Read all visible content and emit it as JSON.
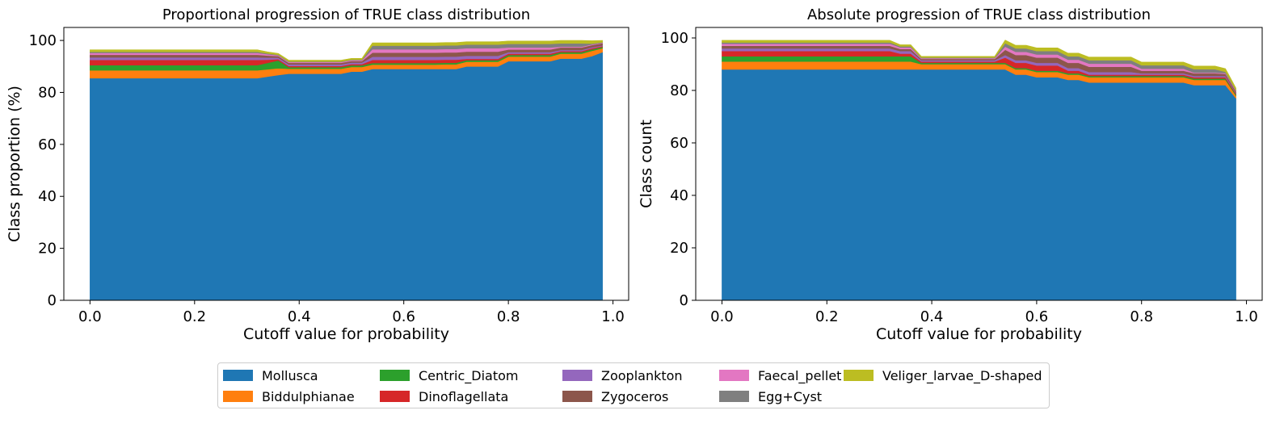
{
  "chart_data": [
    {
      "type": "area",
      "stacked": true,
      "title": "Proportional progression of TRUE class distribution",
      "xlabel": "Cutoff value for probability",
      "ylabel": "Class proportion (%)",
      "xlim": [
        -0.05,
        1.03
      ],
      "ylim": [
        0,
        105
      ],
      "xticks": [
        "0.0",
        "0.2",
        "0.4",
        "0.6",
        "0.8",
        "1.0"
      ],
      "yticks": [
        "0",
        "20",
        "40",
        "60",
        "80",
        "100"
      ],
      "x": [
        0.0,
        0.1,
        0.2,
        0.3,
        0.32,
        0.34,
        0.36,
        0.38,
        0.4,
        0.42,
        0.44,
        0.46,
        0.48,
        0.5,
        0.52,
        0.54,
        0.56,
        0.58,
        0.6,
        0.62,
        0.64,
        0.66,
        0.68,
        0.7,
        0.72,
        0.74,
        0.76,
        0.78,
        0.8,
        0.82,
        0.84,
        0.86,
        0.88,
        0.9,
        0.92,
        0.94,
        0.96,
        0.98
      ],
      "series": [
        {
          "name": "Mollusca",
          "values": [
            85.5,
            85.5,
            85.5,
            85.5,
            85.5,
            86.1,
            86.7,
            87.2,
            87.2,
            87.2,
            87.2,
            87.2,
            87.2,
            88.0,
            88.0,
            89.0,
            89.0,
            89.0,
            89.0,
            89.0,
            89.0,
            89.0,
            89.0,
            89.0,
            90.0,
            90.0,
            90.0,
            90.0,
            92.0,
            92.0,
            92.0,
            92.0,
            92.0,
            93.0,
            93.0,
            93.0,
            94.0,
            95.5
          ]
        },
        {
          "name": "Biddulphianae",
          "values": [
            3.0,
            3.0,
            3.0,
            3.0,
            3.0,
            2.8,
            2.6,
            1.9,
            1.9,
            1.9,
            1.9,
            1.9,
            1.9,
            1.8,
            1.8,
            1.7,
            1.7,
            1.7,
            1.7,
            1.7,
            1.7,
            1.7,
            1.8,
            1.8,
            1.8,
            1.8,
            1.8,
            1.8,
            1.8,
            1.8,
            1.8,
            1.8,
            1.8,
            1.9,
            1.9,
            1.9,
            2.0,
            1.5
          ]
        },
        {
          "name": "Centric_Diatom",
          "values": [
            2.0,
            2.0,
            2.0,
            2.0,
            2.0,
            2.5,
            3.0,
            0.6,
            0.6,
            0.6,
            0.6,
            0.6,
            0.6,
            0.6,
            0.6,
            0.6,
            0.6,
            0.6,
            0.6,
            0.6,
            0.6,
            0.6,
            0.6,
            0.6,
            0.6,
            0.6,
            0.6,
            0.6,
            0.6,
            0.6,
            0.6,
            0.6,
            0.6,
            0.6,
            0.6,
            0.6,
            0.6,
            0.5
          ]
        },
        {
          "name": "Dinoflagellata",
          "values": [
            2.0,
            2.0,
            2.0,
            2.0,
            2.0,
            1.2,
            0.5,
            0.5,
            0.5,
            0.5,
            0.5,
            0.5,
            0.5,
            0.5,
            0.5,
            1.2,
            1.2,
            1.2,
            1.2,
            1.2,
            1.2,
            1.2,
            1.2,
            1.2,
            0.5,
            0.5,
            0.5,
            0.5,
            0.5,
            0.5,
            0.5,
            0.5,
            0.5,
            0.4,
            0.4,
            0.4,
            0.4,
            0.3
          ]
        },
        {
          "name": "Zooplankton",
          "values": [
            1.0,
            1.0,
            1.0,
            1.0,
            1.0,
            0.8,
            0.6,
            0.6,
            0.6,
            0.6,
            0.6,
            0.6,
            0.6,
            0.6,
            0.6,
            1.2,
            1.2,
            1.2,
            1.2,
            1.2,
            1.2,
            1.2,
            1.2,
            1.2,
            1.2,
            1.2,
            1.2,
            1.2,
            0.6,
            0.6,
            0.6,
            0.6,
            0.6,
            0.4,
            0.4,
            0.4,
            0.4,
            0.3
          ]
        },
        {
          "name": "Zygoceros",
          "values": [
            1.0,
            1.0,
            1.0,
            1.0,
            1.0,
            0.8,
            0.6,
            0.6,
            0.6,
            0.6,
            0.6,
            0.6,
            0.6,
            0.6,
            0.6,
            1.6,
            1.6,
            1.6,
            1.6,
            1.6,
            1.6,
            1.6,
            1.6,
            1.6,
            1.6,
            1.6,
            1.6,
            1.6,
            1.0,
            1.0,
            1.0,
            1.0,
            1.0,
            1.0,
            1.0,
            1.0,
            0.8,
            0.8
          ]
        },
        {
          "name": "Faecal_pellet",
          "values": [
            0.7,
            0.7,
            0.7,
            0.7,
            0.7,
            0.5,
            0.3,
            0.3,
            0.3,
            0.3,
            0.3,
            0.3,
            0.3,
            0.3,
            0.3,
            1.3,
            1.3,
            1.3,
            1.3,
            1.3,
            1.3,
            1.3,
            1.3,
            1.3,
            1.3,
            1.3,
            1.3,
            1.3,
            0.8,
            0.8,
            0.8,
            0.8,
            0.8,
            0.3,
            0.3,
            0.3,
            0.3,
            0.2
          ]
        },
        {
          "name": "Egg+Cyst",
          "values": [
            0.4,
            0.4,
            0.4,
            0.4,
            0.4,
            0.3,
            0.2,
            0.2,
            0.2,
            0.2,
            0.2,
            0.2,
            0.2,
            0.2,
            0.2,
            1.4,
            1.4,
            1.4,
            1.4,
            1.4,
            1.4,
            1.4,
            1.4,
            1.4,
            1.4,
            1.4,
            1.4,
            1.4,
            1.4,
            1.4,
            1.4,
            1.4,
            1.4,
            1.3,
            1.3,
            1.3,
            0.3,
            0.2
          ]
        },
        {
          "name": "Veliger_larvae_D-shaped",
          "values": [
            0.8,
            0.8,
            0.8,
            0.8,
            0.8,
            0.6,
            0.5,
            0.5,
            0.5,
            0.5,
            0.5,
            0.5,
            0.5,
            0.5,
            0.5,
            1.1,
            1.1,
            1.1,
            1.1,
            1.1,
            1.1,
            1.1,
            1.1,
            1.1,
            1.1,
            1.1,
            1.1,
            1.1,
            1.1,
            1.1,
            1.1,
            1.1,
            1.1,
            1.1,
            1.1,
            1.1,
            1.1,
            0.7
          ]
        }
      ]
    },
    {
      "type": "area",
      "stacked": true,
      "title": "Absolute progression of TRUE class distribution",
      "xlabel": "Cutoff value for probability",
      "ylabel": "Class count",
      "xlim": [
        -0.05,
        1.03
      ],
      "ylim": [
        0,
        104
      ],
      "xticks": [
        "0.0",
        "0.2",
        "0.4",
        "0.6",
        "0.8",
        "1.0"
      ],
      "yticks": [
        "0",
        "20",
        "40",
        "60",
        "80",
        "100"
      ],
      "x": [
        0.0,
        0.1,
        0.2,
        0.3,
        0.32,
        0.34,
        0.36,
        0.38,
        0.4,
        0.42,
        0.44,
        0.46,
        0.48,
        0.5,
        0.52,
        0.54,
        0.56,
        0.58,
        0.6,
        0.62,
        0.64,
        0.66,
        0.68,
        0.7,
        0.72,
        0.74,
        0.76,
        0.78,
        0.8,
        0.82,
        0.84,
        0.86,
        0.88,
        0.9,
        0.92,
        0.94,
        0.96,
        0.98
      ],
      "series": [
        {
          "name": "Mollusca",
          "values": [
            88,
            88,
            88,
            88,
            88,
            88,
            88,
            88,
            88,
            88,
            88,
            88,
            88,
            88,
            88,
            88,
            86,
            86,
            85,
            85,
            85,
            84,
            84,
            83,
            83,
            83,
            83,
            83,
            83,
            83,
            83,
            83,
            83,
            82,
            82,
            82,
            82,
            77
          ]
        },
        {
          "name": "Biddulphianae",
          "values": [
            3,
            3,
            3,
            3,
            3,
            3,
            3,
            2,
            2,
            2,
            2,
            2,
            2,
            2,
            2,
            2,
            2,
            2,
            2,
            2,
            2,
            2,
            2,
            2,
            2,
            2,
            2,
            2,
            2,
            2,
            2,
            2,
            2,
            2,
            2,
            2,
            2,
            1
          ]
        },
        {
          "name": "Centric_Diatom",
          "values": [
            2,
            2,
            2,
            2,
            2,
            2,
            2,
            0.5,
            0.5,
            0.5,
            0.5,
            0.5,
            0.5,
            0.5,
            0.5,
            0.5,
            0.5,
            0.5,
            0.5,
            0.5,
            0.5,
            0.5,
            0.5,
            0.5,
            0.5,
            0.5,
            0.5,
            0.5,
            0.5,
            0.5,
            0.5,
            0.5,
            0.5,
            0.5,
            0.5,
            0.5,
            0.5,
            0.5
          ]
        },
        {
          "name": "Dinoflagellata",
          "values": [
            2,
            2,
            2,
            2,
            2,
            1,
            1,
            0.5,
            0.5,
            0.5,
            0.5,
            0.5,
            0.5,
            0.5,
            0.5,
            2,
            2,
            2,
            2,
            2,
            2,
            1,
            1,
            0.5,
            0.5,
            0.5,
            0.5,
            0.5,
            0.5,
            0.5,
            0.5,
            0.5,
            0.5,
            0.5,
            0.5,
            0.5,
            0.5,
            0.3
          ]
        },
        {
          "name": "Zooplankton",
          "values": [
            1,
            1,
            1,
            1,
            1,
            1,
            1,
            0.5,
            0.5,
            0.5,
            0.5,
            0.5,
            0.5,
            0.5,
            0.5,
            1,
            1,
            1,
            1,
            1,
            1,
            1,
            1,
            1,
            1,
            1,
            1,
            1,
            0.5,
            0.5,
            0.5,
            0.5,
            0.5,
            0.5,
            0.5,
            0.5,
            0.5,
            0.3
          ]
        },
        {
          "name": "Zygoceros",
          "values": [
            1,
            1,
            1,
            1,
            1,
            0.8,
            0.8,
            0.5,
            0.5,
            0.5,
            0.5,
            0.5,
            0.5,
            0.5,
            0.5,
            2,
            2,
            2,
            2,
            2,
            2,
            2,
            2,
            2,
            2,
            2,
            2,
            2,
            1,
            1,
            1,
            1,
            1,
            1,
            1,
            1,
            0.8,
            0.5
          ]
        },
        {
          "name": "Faecal_pellet",
          "values": [
            0.8,
            0.8,
            0.8,
            0.8,
            0.8,
            0.6,
            0.6,
            0.3,
            0.3,
            0.3,
            0.3,
            0.3,
            0.3,
            0.3,
            0.3,
            1.2,
            1.2,
            1.2,
            1.2,
            1.2,
            1.2,
            1.2,
            1.2,
            1.2,
            1.2,
            1.2,
            1.2,
            1.2,
            0.8,
            0.8,
            0.8,
            0.8,
            0.8,
            0.3,
            0.3,
            0.3,
            0.3,
            0.2
          ]
        },
        {
          "name": "Egg+Cyst",
          "values": [
            0.5,
            0.5,
            0.5,
            0.5,
            0.5,
            0.4,
            0.4,
            0.2,
            0.2,
            0.2,
            0.2,
            0.2,
            0.2,
            0.2,
            0.2,
            1.3,
            1.3,
            1.3,
            1.3,
            1.3,
            1.3,
            1.3,
            1.3,
            1.3,
            1.3,
            1.3,
            1.3,
            1.3,
            1.3,
            1.3,
            1.3,
            1.3,
            1.3,
            1.3,
            1.3,
            1.3,
            0.5,
            0.3
          ]
        },
        {
          "name": "Veliger_larvae_D-shaped",
          "values": [
            0.8,
            0.8,
            0.8,
            0.8,
            0.8,
            0.6,
            0.6,
            0.5,
            0.5,
            0.5,
            0.5,
            0.5,
            0.5,
            0.5,
            0.5,
            1.2,
            1.2,
            1.2,
            1.2,
            1.2,
            1.2,
            1.2,
            1.2,
            1.2,
            1.2,
            1.2,
            1.2,
            1.2,
            1.2,
            1.2,
            1.2,
            1.2,
            1.2,
            1.2,
            1.2,
            1.2,
            1.2,
            0.8
          ]
        }
      ]
    }
  ],
  "legend": {
    "placement": "bottom-center",
    "columns": 5,
    "items": [
      {
        "label": "Mollusca",
        "color": "#1f77b4"
      },
      {
        "label": "Biddulphianae",
        "color": "#ff7f0e"
      },
      {
        "label": "Centric_Diatom",
        "color": "#2ca02c"
      },
      {
        "label": "Dinoflagellata",
        "color": "#d62728"
      },
      {
        "label": "Zooplankton",
        "color": "#9467bd"
      },
      {
        "label": "Zygoceros",
        "color": "#8c564b"
      },
      {
        "label": "Faecal_pellet",
        "color": "#e377c2"
      },
      {
        "label": "Egg+Cyst",
        "color": "#7f7f7f"
      },
      {
        "label": "Veliger_larvae_D-shaped",
        "color": "#bcbd22"
      }
    ]
  }
}
